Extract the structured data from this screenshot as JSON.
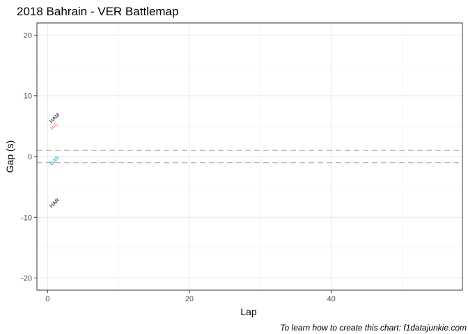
{
  "chart_data": {
    "type": "scatter",
    "title": "2018 Bahrain - VER Battlemap",
    "xlabel": "Lap",
    "ylabel": "Gap (s)",
    "caption": "To learn how to create this chart: f1datajunkie.com",
    "xlim": [
      -1.5,
      58.5
    ],
    "ylim": [
      -22,
      22
    ],
    "x_ticks": [
      0,
      20,
      40
    ],
    "y_ticks": [
      -20,
      -10,
      0,
      10,
      20
    ],
    "grid": true,
    "reference_lines": [
      1,
      -1
    ],
    "series": [
      {
        "label": "HAM",
        "x": 1,
        "y": 6.3,
        "color": "#000000"
      },
      {
        "label": "RIC",
        "x": 1,
        "y": 5.0,
        "color": "#f8766d"
      },
      {
        "label": "GAS",
        "x": 1,
        "y": -0.7,
        "color": "#00a9c3"
      },
      {
        "label": "HAR",
        "x": 1,
        "y": -7.7,
        "color": "#000000"
      }
    ]
  },
  "colors": {
    "grid_major": "#ebebeb",
    "grid_minor": "#f4f4f4",
    "panel_border": "#333333",
    "reference_line": "#b3b3b3"
  }
}
